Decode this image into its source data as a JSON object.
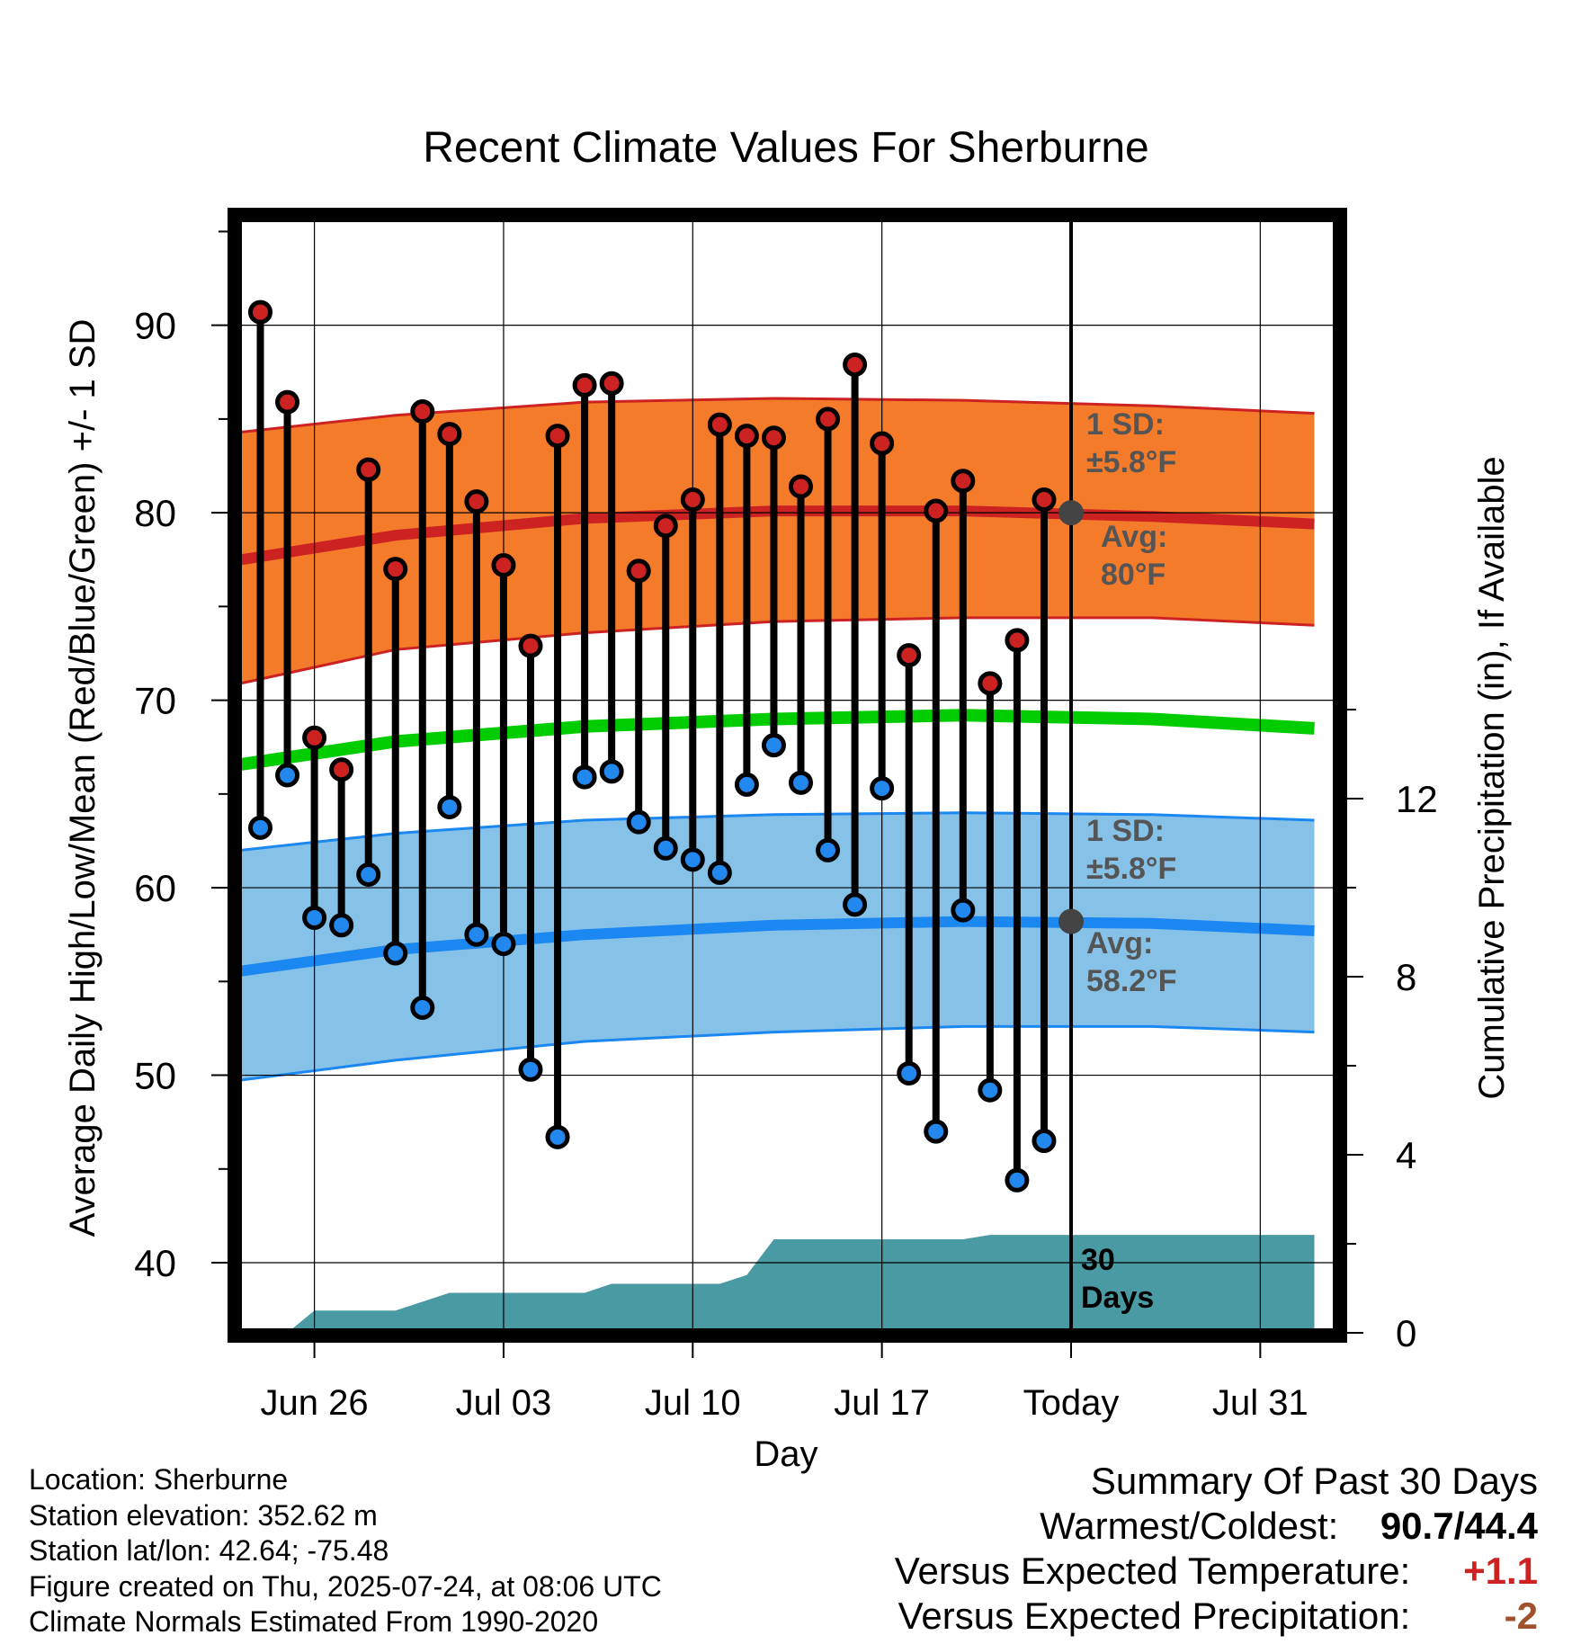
{
  "chart_data": {
    "type": "line",
    "title": "Recent Climate Values For Sherburne",
    "xlabel": "Day",
    "ylabel": "Average Daily High/Low/Mean (Red/Blue/Green) +/- 1 SD",
    "ylabel_right": "Cumulative Precipitation (in), If Available",
    "ylim": [
      36.5,
      95.5
    ],
    "y2lim": [
      0,
      30
    ],
    "yticks": [
      40,
      50,
      60,
      70,
      80,
      90
    ],
    "y2ticks": [
      0,
      4,
      8,
      12
    ],
    "x_range": [
      "2025-06-22",
      "2025-08-02"
    ],
    "xtick_labels": [
      {
        "date": "2025-06-26",
        "label": "Jun 26"
      },
      {
        "date": "2025-07-03",
        "label": "Jul 03"
      },
      {
        "date": "2025-07-10",
        "label": "Jul 10"
      },
      {
        "date": "2025-07-17",
        "label": "Jul 17"
      },
      {
        "date": "2025-07-24",
        "label": "Today"
      },
      {
        "date": "2025-07-31",
        "label": "Jul 31"
      }
    ],
    "today": "2025-07-24",
    "observed_dates": [
      "2025-06-24",
      "2025-06-25",
      "2025-06-26",
      "2025-06-27",
      "2025-06-28",
      "2025-06-29",
      "2025-06-30",
      "2025-07-01",
      "2025-07-02",
      "2025-07-03",
      "2025-07-04",
      "2025-07-05",
      "2025-07-06",
      "2025-07-07",
      "2025-07-08",
      "2025-07-09",
      "2025-07-10",
      "2025-07-11",
      "2025-07-12",
      "2025-07-13",
      "2025-07-14",
      "2025-07-15",
      "2025-07-16",
      "2025-07-17",
      "2025-07-18",
      "2025-07-19",
      "2025-07-20",
      "2025-07-21",
      "2025-07-22",
      "2025-07-23"
    ],
    "series": [
      {
        "name": "Daily High",
        "color": "#cc2222",
        "values": [
          90.7,
          85.9,
          68.0,
          66.3,
          82.3,
          77.0,
          85.4,
          84.2,
          80.6,
          77.2,
          72.9,
          84.1,
          86.8,
          86.9,
          76.9,
          79.3,
          80.7,
          84.7,
          84.1,
          84.0,
          81.4,
          85.0,
          87.9,
          83.7,
          72.4,
          80.1,
          81.7,
          70.9,
          73.2,
          80.7
        ]
      },
      {
        "name": "Daily Low",
        "color": "#2288ee",
        "values": [
          63.2,
          66.0,
          58.4,
          58.0,
          60.7,
          56.5,
          53.6,
          64.3,
          57.5,
          57.0,
          50.3,
          46.7,
          65.9,
          66.2,
          63.5,
          62.1,
          61.5,
          60.8,
          65.5,
          67.6,
          65.6,
          62.0,
          59.1,
          65.3,
          50.1,
          47.0,
          58.8,
          49.2,
          44.4,
          46.5
        ]
      }
    ],
    "normals": {
      "dates": [
        "2025-06-22",
        "2025-06-29",
        "2025-07-06",
        "2025-07-13",
        "2025-07-20",
        "2025-07-27",
        "2025-08-02"
      ],
      "high_avg": [
        77.2,
        78.8,
        79.7,
        80.1,
        80.1,
        79.8,
        79.4
      ],
      "high_plus_sd": [
        84.1,
        85.2,
        85.9,
        86.1,
        86.0,
        85.7,
        85.3
      ],
      "high_minus_sd": [
        70.5,
        72.7,
        73.6,
        74.2,
        74.4,
        74.4,
        74.0
      ],
      "low_avg": [
        55.3,
        56.7,
        57.5,
        58.0,
        58.2,
        58.1,
        57.7
      ],
      "low_plus_sd": [
        61.8,
        62.9,
        63.6,
        63.9,
        64.0,
        63.9,
        63.6
      ],
      "low_minus_sd": [
        49.5,
        50.8,
        51.8,
        52.3,
        52.6,
        52.6,
        52.3
      ],
      "mean": [
        66.3,
        67.8,
        68.6,
        69.0,
        69.2,
        69.0,
        68.5
      ]
    },
    "precipitation": {
      "dates": [
        "2025-06-22",
        "2025-06-25",
        "2025-06-26",
        "2025-06-29",
        "2025-07-01",
        "2025-07-06",
        "2025-07-07",
        "2025-07-11",
        "2025-07-12",
        "2025-07-13",
        "2025-07-20",
        "2025-07-21",
        "2025-08-02"
      ],
      "values": [
        0,
        0,
        0.5,
        0.5,
        0.9,
        0.9,
        1.1,
        1.1,
        1.3,
        2.1,
        2.1,
        2.2,
        2.2
      ]
    },
    "annotations": {
      "high_sd": [
        "1 SD:",
        "±5.8°F"
      ],
      "high_avg": [
        "Avg:",
        "80°F"
      ],
      "low_sd": [
        "1 SD:",
        "±5.8°F"
      ],
      "low_avg": [
        "Avg:",
        "58.2°F"
      ],
      "precip_label": [
        "30",
        "Days"
      ]
    },
    "grid": true,
    "legend": "none"
  },
  "colors": {
    "high_band": "#f47b2a",
    "high_line": "#cc2222",
    "low_band": "#86c1e8",
    "low_line": "#1b87f0",
    "mean_line": "#00cc00",
    "precip_fill": "#4a9aa3",
    "annotation_text": "#555555",
    "today_dot": "#444444"
  },
  "info": {
    "location": "Location: Sherburne",
    "elevation": "Station elevation: 352.62 m",
    "latlon": "Station lat/lon: 42.64; -75.48",
    "created": "Figure created on Thu, 2025-07-24, at 08:06 UTC",
    "normals": "Climate Normals Estimated From 1990-2020"
  },
  "summary": {
    "title": "Summary Of Past 30 Days",
    "warmest_label": "Warmest/Coldest:",
    "warmest_value": "90.7/44.4",
    "temp_label": "Versus Expected Temperature:",
    "temp_value": "+1.1",
    "temp_color": "#cc2222",
    "precip_label": "Versus Expected Precipitation:",
    "precip_value": "-2",
    "precip_color": "#a0522d"
  }
}
